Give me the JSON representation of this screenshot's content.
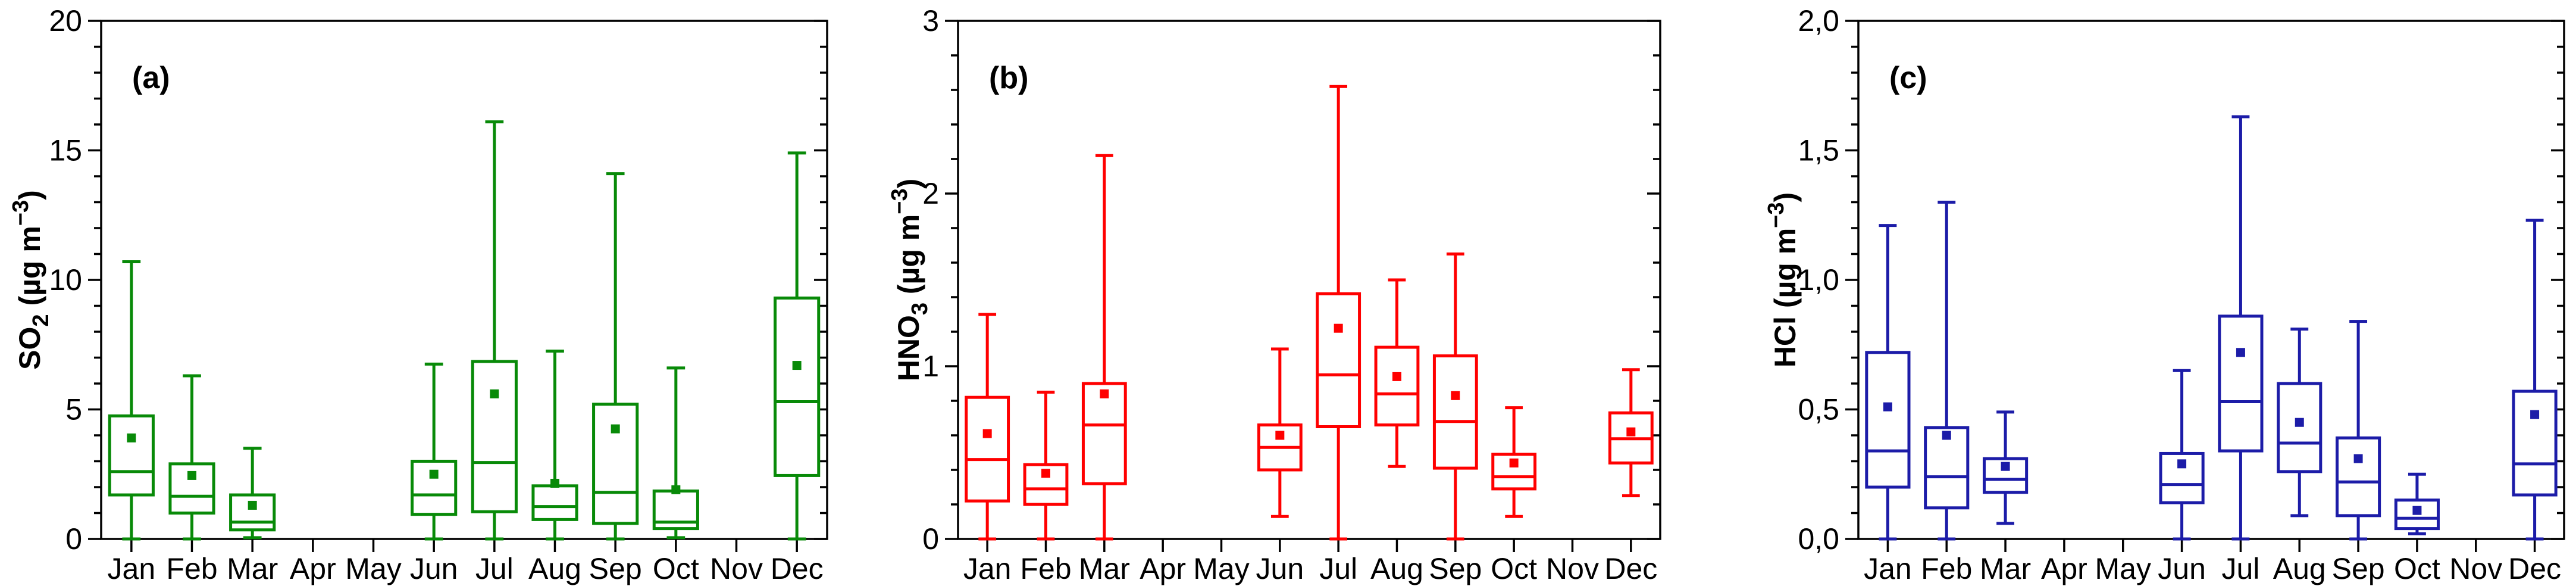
{
  "figure": {
    "description_months": [
      "Jan",
      "Feb",
      "Mar",
      "Apr",
      "May",
      "Jun",
      "Jul",
      "Aug",
      "Sep",
      "Oct",
      "Nov",
      "Dec"
    ]
  },
  "chart_data": [
    {
      "type": "box",
      "panel": "a",
      "letter": "(a)",
      "color": "#088A08",
      "ylabel_text": "SO₂ (µg m⁻³)",
      "ylabel_parts": [
        {
          "t": "SO"
        },
        {
          "t": "2",
          "s": "sub"
        },
        {
          "t": " (µg m"
        },
        {
          "t": "−3",
          "s": "sup"
        },
        {
          "t": ")"
        }
      ],
      "ylim": [
        0,
        20
      ],
      "yticks": [
        {
          "v": 0,
          "label": "0"
        },
        {
          "v": 5,
          "label": "5"
        },
        {
          "v": 10,
          "label": "10"
        },
        {
          "v": 15,
          "label": "15"
        },
        {
          "v": 20,
          "label": "20"
        }
      ],
      "yminor_step": 1,
      "grid": false,
      "categories": [
        "Jan",
        "Feb",
        "Mar",
        "Apr",
        "May",
        "Jun",
        "Jul",
        "Aug",
        "Sep",
        "Oct",
        "Nov",
        "Dec"
      ],
      "boxes": [
        {
          "month": "Jan",
          "lo": 0,
          "q1": 1.7,
          "med": 2.6,
          "q3": 4.75,
          "hi": 10.7,
          "mean": 3.9
        },
        {
          "month": "Feb",
          "lo": 0,
          "q1": 1.0,
          "med": 1.65,
          "q3": 2.9,
          "hi": 6.3,
          "mean": 2.45
        },
        {
          "month": "Mar",
          "lo": 0.05,
          "q1": 0.35,
          "med": 0.65,
          "q3": 1.7,
          "hi": 3.5,
          "mean": 1.3
        },
        null,
        null,
        {
          "month": "Jun",
          "lo": 0,
          "q1": 0.95,
          "med": 1.7,
          "q3": 3.0,
          "hi": 6.75,
          "mean": 2.5
        },
        {
          "month": "Jul",
          "lo": 0,
          "q1": 1.05,
          "med": 2.95,
          "q3": 6.85,
          "hi": 16.1,
          "mean": 5.6
        },
        {
          "month": "Aug",
          "lo": 0,
          "q1": 0.75,
          "med": 1.25,
          "q3": 2.05,
          "hi": 7.25,
          "mean": 2.15
        },
        {
          "month": "Sep",
          "lo": 0,
          "q1": 0.6,
          "med": 1.8,
          "q3": 5.2,
          "hi": 14.1,
          "mean": 4.25
        },
        {
          "month": "Oct",
          "lo": 0.05,
          "q1": 0.4,
          "med": 0.65,
          "q3": 1.85,
          "hi": 6.6,
          "mean": 1.9
        },
        null,
        {
          "month": "Dec",
          "lo": 0,
          "q1": 2.45,
          "med": 5.3,
          "q3": 9.3,
          "hi": 14.9,
          "mean": 6.7
        }
      ]
    },
    {
      "type": "box",
      "panel": "b",
      "letter": "(b)",
      "color": "#FF0000",
      "ylabel_text": "HNO₃ (µg m⁻³)",
      "ylabel_parts": [
        {
          "t": "HNO"
        },
        {
          "t": "3",
          "s": "sub"
        },
        {
          "t": " (µg m"
        },
        {
          "t": "−3",
          "s": "sup"
        },
        {
          "t": ")"
        }
      ],
      "ylim": [
        0,
        3
      ],
      "yticks": [
        {
          "v": 0,
          "label": "0"
        },
        {
          "v": 1,
          "label": "1"
        },
        {
          "v": 2,
          "label": "2"
        },
        {
          "v": 3,
          "label": "3"
        }
      ],
      "yminor_step": 0.2,
      "grid": false,
      "categories": [
        "Jan",
        "Feb",
        "Mar",
        "Apr",
        "May",
        "Jun",
        "Jul",
        "Aug",
        "Sep",
        "Oct",
        "Nov",
        "Dec"
      ],
      "boxes": [
        {
          "month": "Jan",
          "lo": 0,
          "q1": 0.22,
          "med": 0.46,
          "q3": 0.82,
          "hi": 1.3,
          "mean": 0.61
        },
        {
          "month": "Feb",
          "lo": 0,
          "q1": 0.2,
          "med": 0.29,
          "q3": 0.43,
          "hi": 0.85,
          "mean": 0.38
        },
        {
          "month": "Mar",
          "lo": 0,
          "q1": 0.32,
          "med": 0.66,
          "q3": 0.9,
          "hi": 2.22,
          "mean": 0.84
        },
        null,
        null,
        {
          "month": "Jun",
          "lo": 0.13,
          "q1": 0.4,
          "med": 0.53,
          "q3": 0.66,
          "hi": 1.1,
          "mean": 0.6
        },
        {
          "month": "Jul",
          "lo": 0,
          "q1": 0.65,
          "med": 0.95,
          "q3": 1.42,
          "hi": 2.62,
          "mean": 1.22
        },
        {
          "month": "Aug",
          "lo": 0.42,
          "q1": 0.66,
          "med": 0.84,
          "q3": 1.11,
          "hi": 1.5,
          "mean": 0.94
        },
        {
          "month": "Sep",
          "lo": 0,
          "q1": 0.41,
          "med": 0.68,
          "q3": 1.06,
          "hi": 1.65,
          "mean": 0.83
        },
        {
          "month": "Oct",
          "lo": 0.13,
          "q1": 0.29,
          "med": 0.36,
          "q3": 0.49,
          "hi": 0.76,
          "mean": 0.44
        },
        null,
        {
          "month": "Dec",
          "lo": 0.25,
          "q1": 0.44,
          "med": 0.58,
          "q3": 0.73,
          "hi": 0.98,
          "mean": 0.62
        }
      ]
    },
    {
      "type": "box",
      "panel": "c",
      "letter": "(c)",
      "color": "#1C1CA8",
      "ylabel_text": "HCl (µg m⁻³)",
      "ylabel_parts": [
        {
          "t": "HCl (µg m"
        },
        {
          "t": "−3",
          "s": "sup"
        },
        {
          "t": ")"
        }
      ],
      "ylim": [
        0,
        2
      ],
      "yticks": [
        {
          "v": 0,
          "label": "0,0"
        },
        {
          "v": 0.5,
          "label": "0,5"
        },
        {
          "v": 1,
          "label": "1,0"
        },
        {
          "v": 1.5,
          "label": "1,5"
        },
        {
          "v": 2,
          "label": "2,0"
        }
      ],
      "yminor_step": 0.1,
      "grid": false,
      "categories": [
        "Jan",
        "Feb",
        "Mar",
        "Apr",
        "May",
        "Jun",
        "Jul",
        "Aug",
        "Sep",
        "Oct",
        "Nov",
        "Dec"
      ],
      "boxes": [
        {
          "month": "Jan",
          "lo": 0,
          "q1": 0.2,
          "med": 0.34,
          "q3": 0.72,
          "hi": 1.21,
          "mean": 0.51
        },
        {
          "month": "Feb",
          "lo": 0,
          "q1": 0.12,
          "med": 0.24,
          "q3": 0.43,
          "hi": 1.3,
          "mean": 0.4
        },
        {
          "month": "Mar",
          "lo": 0.06,
          "q1": 0.18,
          "med": 0.23,
          "q3": 0.31,
          "hi": 0.49,
          "mean": 0.28
        },
        null,
        null,
        {
          "month": "Jun",
          "lo": 0,
          "q1": 0.14,
          "med": 0.21,
          "q3": 0.33,
          "hi": 0.65,
          "mean": 0.29
        },
        {
          "month": "Jul",
          "lo": 0,
          "q1": 0.34,
          "med": 0.53,
          "q3": 0.86,
          "hi": 1.63,
          "mean": 0.72
        },
        {
          "month": "Aug",
          "lo": 0.09,
          "q1": 0.26,
          "med": 0.37,
          "q3": 0.6,
          "hi": 0.81,
          "mean": 0.45
        },
        {
          "month": "Sep",
          "lo": 0,
          "q1": 0.09,
          "med": 0.22,
          "q3": 0.39,
          "hi": 0.84,
          "mean": 0.31
        },
        {
          "month": "Oct",
          "lo": 0.02,
          "q1": 0.04,
          "med": 0.08,
          "q3": 0.15,
          "hi": 0.25,
          "mean": 0.11
        },
        null,
        {
          "month": "Dec",
          "lo": 0,
          "q1": 0.17,
          "med": 0.29,
          "q3": 0.57,
          "hi": 1.23,
          "mean": 0.48
        }
      ]
    }
  ]
}
